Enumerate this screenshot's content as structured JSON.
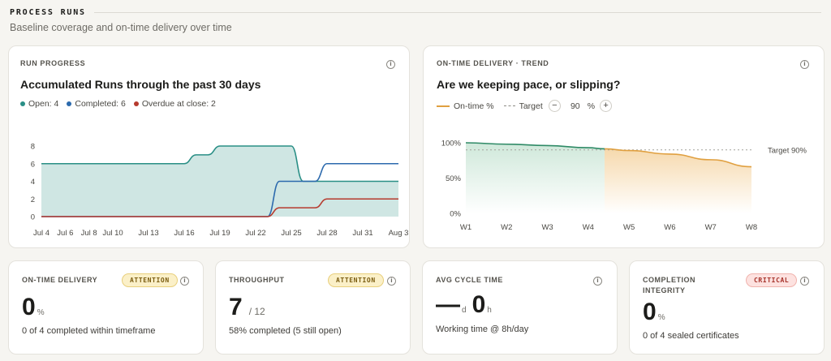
{
  "section": {
    "title": "PROCESS RUNS",
    "subtitle": "Baseline coverage and on-time delivery over time"
  },
  "run_progress": {
    "label": "RUN PROGRESS",
    "title": "Accumulated Runs through the past 30 days",
    "legend": [
      {
        "text": "Open: 4",
        "color": "#2a8f86"
      },
      {
        "text": "Completed: 6",
        "color": "#2c6aad"
      },
      {
        "text": "Overdue at close: 2",
        "color": "#b63a2e"
      }
    ]
  },
  "trend": {
    "label": "ON-TIME DELIVERY · TREND",
    "title": "Are we keeping pace, or slipping?",
    "legend_line": "On-time %",
    "legend_target": "Target",
    "decrement": "−",
    "increment": "+",
    "target_value": "90",
    "target_unit": "%",
    "target_annotation": "Target 90%"
  },
  "kpis": {
    "ontime": {
      "label": "ON-TIME DELIVERY",
      "badge": "ATTENTION",
      "value": "0",
      "unit": "%",
      "note": "0 of 4 completed within timeframe"
    },
    "throughput": {
      "label": "THROUGHPUT",
      "badge": "ATTENTION",
      "value": "7",
      "denom": "/ 12",
      "note": "58% completed (5 still open)"
    },
    "cycle": {
      "label": "AVG CYCLE TIME",
      "value_days": "—",
      "unit_days": "d",
      "value_hours": "0",
      "unit_hours": "h",
      "note": "Working time @ 8h/day"
    },
    "integrity": {
      "label": "COMPLETION INTEGRITY",
      "badge": "CRITICAL",
      "value": "0",
      "unit": "%",
      "note": "0 of 4 sealed certificates"
    }
  },
  "chart_data": [
    {
      "type": "area",
      "x_ticks": [
        "Jul 4",
        "Jul 6",
        "Jul 8",
        "Jul 10",
        "Jul 13",
        "Jul 16",
        "Jul 19",
        "Jul 22",
        "Jul 25",
        "Jul 28",
        "Jul 31",
        "Aug 3"
      ],
      "y_ticks": [
        "0",
        "2",
        "4",
        "6",
        "8"
      ],
      "ylim": [
        0,
        8
      ],
      "grid": false,
      "series": [
        {
          "name": "Open",
          "color": "#2a8f86",
          "fill": "#cfe6e3",
          "x": [
            "Jul 4",
            "Jul 16",
            "Jul 17",
            "Jul 18",
            "Jul 19",
            "Jul 20",
            "Jul 25",
            "Jul 26",
            "Jul 27",
            "Aug 3"
          ],
          "values": [
            6,
            6,
            7,
            7,
            8,
            8,
            8,
            4,
            4,
            4
          ]
        },
        {
          "name": "Completed",
          "color": "#2c6aad",
          "x": [
            "Jul 4",
            "Jul 23",
            "Jul 24",
            "Jul 27",
            "Jul 28",
            "Aug 3"
          ],
          "values": [
            0,
            0,
            4,
            4,
            6,
            6
          ]
        },
        {
          "name": "Overdue at close",
          "color": "#b63a2e",
          "x": [
            "Jul 4",
            "Jul 23",
            "Jul 24",
            "Jul 27",
            "Jul 28",
            "Aug 3"
          ],
          "values": [
            0,
            0,
            1,
            1,
            2,
            2
          ]
        }
      ]
    },
    {
      "type": "line",
      "categories": [
        "W1",
        "W2",
        "W3",
        "W4",
        "W5",
        "W6",
        "W7",
        "W8"
      ],
      "y_ticks": [
        "0%",
        "50%",
        "100%"
      ],
      "ylim": [
        0,
        100
      ],
      "target": 90,
      "series": [
        {
          "name": "On-time %",
          "values": [
            100,
            98,
            96,
            93,
            89,
            84,
            76,
            66
          ],
          "actual_color": "#2f8a66",
          "projected_color": "#e0a040"
        }
      ]
    }
  ]
}
